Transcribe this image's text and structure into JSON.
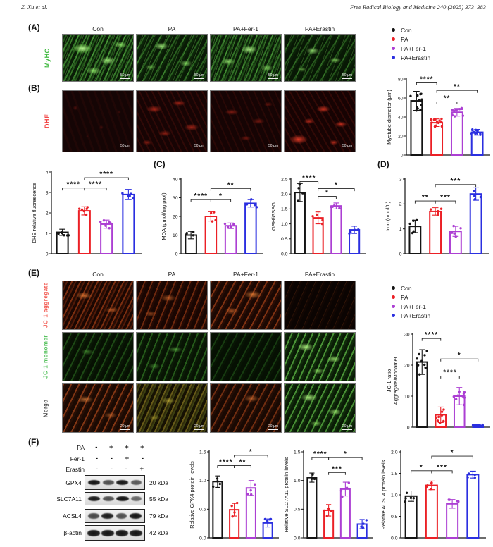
{
  "header": {
    "left": "Z. Xu et al.",
    "right": "Free Radical Biology and Medicine 240 (2025) 373–383"
  },
  "groups": [
    "Con",
    "PA",
    "PA+Fer-1",
    "PA+Erastin"
  ],
  "colors": {
    "con": "#141414",
    "pa": "#EB2026",
    "fer1": "#AC3FD3",
    "erastin": "#2B2FE0",
    "myhc_label_green": "#46BC46",
    "dhe_label_red": "#F14040",
    "aggregate_label_red": "#F25A52",
    "monomer_label_green": "#57C25F"
  },
  "legend": {
    "items": [
      {
        "label": "Con",
        "color": "#141414"
      },
      {
        "label": "PA",
        "color": "#EB2026"
      },
      {
        "label": "PA+Fer-1",
        "color": "#AC3FD3"
      },
      {
        "label": "PA+Erastin",
        "color": "#2B2FE0"
      }
    ]
  },
  "panelA": {
    "label": "(A)",
    "row_label": "MyHC",
    "columns": [
      "Con",
      "PA",
      "PA+Fer-1",
      "PA+Erastin"
    ],
    "scale_bar": "50 μm"
  },
  "panelB": {
    "label": "(B)",
    "row_label": "DHE",
    "scale_bar": "50 μm"
  },
  "panelC": {
    "label": "(C)"
  },
  "panelD": {
    "label": "(D)"
  },
  "panelE": {
    "label": "(E)",
    "columns": [
      "Con",
      "PA",
      "PA+Fer-1",
      "PA+Erastin"
    ],
    "row_labels": [
      "JC-1 aggregate",
      "JC-1 monomer",
      "Merge"
    ],
    "scale_bar": "20 μm"
  },
  "panelF": {
    "label": "(F)",
    "treatments": [
      {
        "label": "PA",
        "values": [
          "-",
          "+",
          "+",
          "+"
        ]
      },
      {
        "label": "Fer-1",
        "values": [
          "-",
          "-",
          "+",
          "-"
        ]
      },
      {
        "label": "Erastin",
        "values": [
          "-",
          "-",
          "-",
          "+"
        ]
      }
    ],
    "blots": [
      {
        "label": "GPX4",
        "kda": "20 kDa",
        "bands": [
          0.95,
          0.55,
          0.92,
          0.5
        ]
      },
      {
        "label": "SLC7A11",
        "kda": "55 kDa",
        "bands": [
          0.9,
          0.55,
          0.95,
          0.4
        ]
      },
      {
        "label": "ACSL4",
        "kda": "79 kDa",
        "bands": [
          0.6,
          0.9,
          0.55,
          0.95
        ]
      },
      {
        "label": "β-actin",
        "kda": "42 kDa",
        "bands": [
          0.95,
          0.95,
          0.95,
          0.95
        ]
      }
    ]
  },
  "chart_data": {
    "type": "bar",
    "categories": [
      "Con",
      "PA",
      "PA+Fer-1",
      "PA+Erastin"
    ],
    "series_colors": [
      "#141414",
      "#EB2026",
      "#AC3FD3",
      "#2B2FE0"
    ],
    "legend_position": "top-right",
    "grid": false,
    "sig_note": "sig entries are [barIndexA, barIndexB, yPosition, label]",
    "charts": {
      "myotube": {
        "ylabel": "Myotube diameter (μm)",
        "ylim": [
          0,
          80
        ],
        "yticks": [
          "0",
          "20",
          "40",
          "60",
          "80"
        ],
        "values": [
          57,
          34,
          45,
          24
        ],
        "errors": [
          10,
          4,
          4,
          3
        ],
        "n_points": 12,
        "sig": [
          [
            0,
            1,
            76,
            "****"
          ],
          [
            1,
            3,
            68,
            "**"
          ],
          [
            1,
            2,
            56,
            "**"
          ]
        ]
      },
      "dhe": {
        "ylabel": "DHE relative fluorescence",
        "ylim": [
          0,
          4
        ],
        "yticks": [
          "0",
          "1",
          "2",
          "3",
          "4"
        ],
        "values": [
          1.05,
          2.1,
          1.45,
          2.9
        ],
        "errors": [
          0.15,
          0.2,
          0.2,
          0.25
        ],
        "n_points": 6,
        "sig": [
          [
            0,
            1,
            3.22,
            "****"
          ],
          [
            1,
            2,
            3.22,
            "****"
          ],
          [
            1,
            3,
            3.72,
            "****"
          ]
        ]
      },
      "mda": {
        "ylabel": "MDA (μmol/mg prot)",
        "ylim": [
          0,
          40
        ],
        "yticks": [
          "0",
          "10",
          "20",
          "30",
          "40"
        ],
        "values": [
          10,
          20,
          15,
          27
        ],
        "errors": [
          2,
          2.5,
          1.5,
          2
        ],
        "n_points": 4,
        "sig": [
          [
            0,
            1,
            29,
            "****"
          ],
          [
            1,
            2,
            29,
            "*"
          ],
          [
            1,
            3,
            35,
            "**"
          ]
        ]
      },
      "gsh": {
        "ylabel": "GSH/GSSG",
        "ylim": [
          0,
          2.5
        ],
        "yticks": [
          "0.0",
          "0.5",
          "1.0",
          "1.5",
          "2.0",
          "2.5"
        ],
        "values": [
          2.05,
          1.2,
          1.6,
          0.8
        ],
        "errors": [
          0.3,
          0.2,
          0.1,
          0.12
        ],
        "n_points": 4,
        "sig": [
          [
            0,
            1,
            2.42,
            "****"
          ],
          [
            1,
            2,
            1.92,
            "*"
          ],
          [
            1,
            3,
            2.18,
            "*"
          ]
        ]
      },
      "iron": {
        "ylabel": "Iron (nmol/L)",
        "ylim": [
          0,
          3
        ],
        "yticks": [
          "0",
          "1",
          "2",
          "3"
        ],
        "values": [
          1.1,
          1.7,
          0.9,
          2.4
        ],
        "errors": [
          0.25,
          0.15,
          0.2,
          0.25
        ],
        "n_points": 5,
        "sig": [
          [
            0,
            1,
            2.12,
            "**"
          ],
          [
            1,
            2,
            2.12,
            "***"
          ],
          [
            1,
            3,
            2.78,
            "***"
          ]
        ]
      },
      "jc1": {
        "ylabel": "JC-1 ratio\nAggregate/Monomer",
        "ylim": [
          0,
          30
        ],
        "yticks": [
          "0",
          "10",
          "20",
          "30"
        ],
        "values": [
          21,
          4,
          10,
          0.5
        ],
        "errors": [
          4,
          2.5,
          2.8,
          0.3
        ],
        "n_points": 9,
        "sig": [
          [
            0,
            1,
            28.6,
            "****"
          ],
          [
            1,
            2,
            16.5,
            "****"
          ],
          [
            1,
            3,
            22,
            "*"
          ]
        ]
      },
      "gpx4": {
        "ylabel": "Relative GPX4 protein levels",
        "ylim": [
          0,
          1.5
        ],
        "yticks": [
          "0.0",
          "0.5",
          "1.0",
          "1.5"
        ],
        "values": [
          0.98,
          0.49,
          0.87,
          0.26
        ],
        "errors": [
          0.1,
          0.11,
          0.13,
          0.07
        ],
        "n_points": 4,
        "sig": [
          [
            0,
            1,
            1.26,
            "****"
          ],
          [
            1,
            2,
            1.26,
            "**"
          ],
          [
            1,
            3,
            1.44,
            "*"
          ]
        ]
      },
      "slc7a11": {
        "ylabel": "Relative SLC7A11 protein levels",
        "ylim": [
          0,
          1.5
        ],
        "yticks": [
          "0.0",
          "0.5",
          "1.0",
          "1.5"
        ],
        "values": [
          1.05,
          0.48,
          0.85,
          0.24
        ],
        "errors": [
          0.08,
          0.1,
          0.12,
          0.08
        ],
        "n_points": 4,
        "sig": [
          [
            0,
            1,
            1.4,
            "****"
          ],
          [
            1,
            2,
            1.14,
            "***"
          ],
          [
            1,
            3,
            1.4,
            "*"
          ]
        ]
      },
      "acsl4": {
        "ylabel": "Relative ACSL4 protein levels",
        "ylim": [
          0,
          2
        ],
        "yticks": [
          "0.0",
          "0.5",
          "1.0",
          "1.5",
          "2.0"
        ],
        "values": [
          0.97,
          1.22,
          0.79,
          1.47
        ],
        "errors": [
          0.12,
          0.1,
          0.1,
          0.08
        ],
        "n_points": 5,
        "sig": [
          [
            0,
            1,
            1.56,
            "*"
          ],
          [
            1,
            2,
            1.56,
            "***"
          ],
          [
            1,
            3,
            1.9,
            "*"
          ]
        ]
      }
    }
  }
}
